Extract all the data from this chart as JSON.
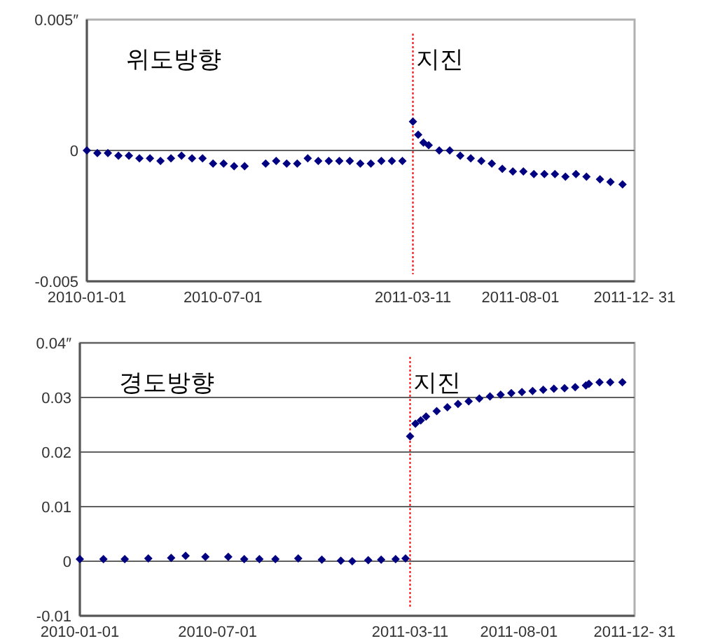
{
  "chart_data": [
    {
      "type": "scatter",
      "color": "#000080",
      "marker": "diamond",
      "x": [
        "2010-01-01",
        "2010-01-15",
        "2010-01-29",
        "2010-02-12",
        "2010-02-26",
        "2010-03-12",
        "2010-03-26",
        "2010-04-09",
        "2010-04-23",
        "2010-05-07",
        "2010-05-21",
        "2010-06-04",
        "2010-06-18",
        "2010-07-02",
        "2010-07-16",
        "2010-07-30",
        "2010-08-27",
        "2010-09-10",
        "2010-09-24",
        "2010-10-08",
        "2010-10-22",
        "2010-11-05",
        "2010-11-19",
        "2010-12-03",
        "2010-12-17",
        "2010-12-31",
        "2011-01-14",
        "2011-01-28",
        "2011-02-11",
        "2011-02-25",
        "2011-03-11",
        "2011-03-18",
        "2011-03-25",
        "2011-04-01",
        "2011-04-15",
        "2011-04-29",
        "2011-05-13",
        "2011-05-27",
        "2011-06-10",
        "2011-06-24",
        "2011-07-08",
        "2011-07-22",
        "2011-08-05",
        "2011-08-19",
        "2011-09-02",
        "2011-09-16",
        "2011-09-30",
        "2011-10-14",
        "2011-10-28",
        "2011-11-15",
        "2011-11-29",
        "2011-12-15"
      ],
      "values": [
        0.0,
        -0.0001,
        -0.0001,
        -0.0002,
        -0.0002,
        -0.0003,
        -0.0003,
        -0.0004,
        -0.0003,
        -0.0002,
        -0.0003,
        -0.0003,
        -0.0005,
        -0.0005,
        -0.0006,
        -0.0006,
        -0.0005,
        -0.0004,
        -0.0005,
        -0.0005,
        -0.0003,
        -0.0004,
        -0.0004,
        -0.0004,
        -0.0004,
        -0.0005,
        -0.0005,
        -0.0004,
        -0.0004,
        -0.0004,
        0.0011,
        0.0006,
        0.0003,
        0.0002,
        0.0,
        0.0,
        -0.0002,
        -0.0003,
        -0.0004,
        -0.0005,
        -0.0007,
        -0.0008,
        -0.0008,
        -0.0009,
        -0.0009,
        -0.0009,
        -0.001,
        -0.0009,
        -0.001,
        -0.0011,
        -0.0012,
        -0.0013
      ],
      "xlim": [
        "2010-01-01",
        "2011-12-31"
      ],
      "xticks": [
        "2010-01-01",
        "2010-07-01",
        "2011-03-11",
        "2011-08-01",
        {
          "value": "2011-12-31",
          "label": "2011-12- 31"
        }
      ],
      "ylim": [
        -0.005,
        0.005
      ],
      "yticks": [
        {
          "value": -0.005,
          "label": "-0.005"
        },
        0,
        {
          "value": 0.005,
          "label": "0.005″"
        }
      ],
      "ref_lines": [
        {
          "axis": "y",
          "value": 0,
          "color": "#606060",
          "line_style": "solid"
        },
        {
          "axis": "x",
          "value": "2011-03-11",
          "label": "지진",
          "color": "#ff0000",
          "line_style": "dotted"
        }
      ],
      "annotations": [
        "위도방향"
      ]
    },
    {
      "type": "scatter",
      "color": "#000080",
      "marker": "diamond",
      "grid": "y",
      "x": [
        "2010-01-01",
        "2010-02-01",
        "2010-03-01",
        "2010-04-01",
        "2010-05-01",
        "2010-05-20",
        "2010-06-15",
        "2010-07-15",
        "2010-08-05",
        "2010-08-25",
        "2010-09-15",
        "2010-10-15",
        "2010-11-15",
        "2010-12-10",
        "2010-12-25",
        "2011-01-15",
        "2011-02-01",
        "2011-02-20",
        "2011-03-05",
        "2011-03-11",
        "2011-03-18",
        "2011-03-25",
        "2011-04-01",
        "2011-04-15",
        "2011-04-29",
        "2011-05-13",
        "2011-05-27",
        "2011-06-10",
        "2011-06-24",
        "2011-07-08",
        "2011-07-22",
        "2011-08-05",
        "2011-08-19",
        "2011-09-02",
        "2011-09-16",
        "2011-09-30",
        "2011-10-14",
        "2011-10-28",
        "2011-11-01",
        "2011-11-15",
        "2011-11-29",
        "2011-12-15"
      ],
      "values": [
        0.0004,
        0.0004,
        0.0004,
        0.0005,
        0.0006,
        0.001,
        0.0008,
        0.0008,
        0.0004,
        0.0004,
        0.0004,
        0.0005,
        0.0003,
        0.0001,
        0.0,
        0.0002,
        0.0003,
        0.0004,
        0.0005,
        0.0229,
        0.0252,
        0.0258,
        0.0265,
        0.0275,
        0.0282,
        0.0288,
        0.0293,
        0.0298,
        0.0302,
        0.0305,
        0.0308,
        0.031,
        0.0312,
        0.0314,
        0.0316,
        0.0317,
        0.0319,
        0.0322,
        0.0325,
        0.0328,
        0.0328,
        0.0328
      ],
      "xlim": [
        "2010-01-01",
        "2011-12-31"
      ],
      "xticks": [
        "2010-01-01",
        "2010-07-01",
        "2011-03-11",
        "2011-08-01",
        {
          "value": "2011-12-31",
          "label": "2011-12- 31"
        }
      ],
      "ylim": [
        -0.01,
        0.04
      ],
      "yticks": [
        {
          "value": -0.01,
          "label": "-0.01"
        },
        0,
        0.01,
        0.02,
        0.03,
        {
          "value": 0.04,
          "label": "0.04″"
        }
      ],
      "ref_lines": [
        {
          "axis": "x",
          "value": "2011-03-11",
          "label": "지진",
          "color": "#ff0000",
          "line_style": "dotted"
        }
      ],
      "annotations": [
        "경도방향"
      ]
    }
  ]
}
